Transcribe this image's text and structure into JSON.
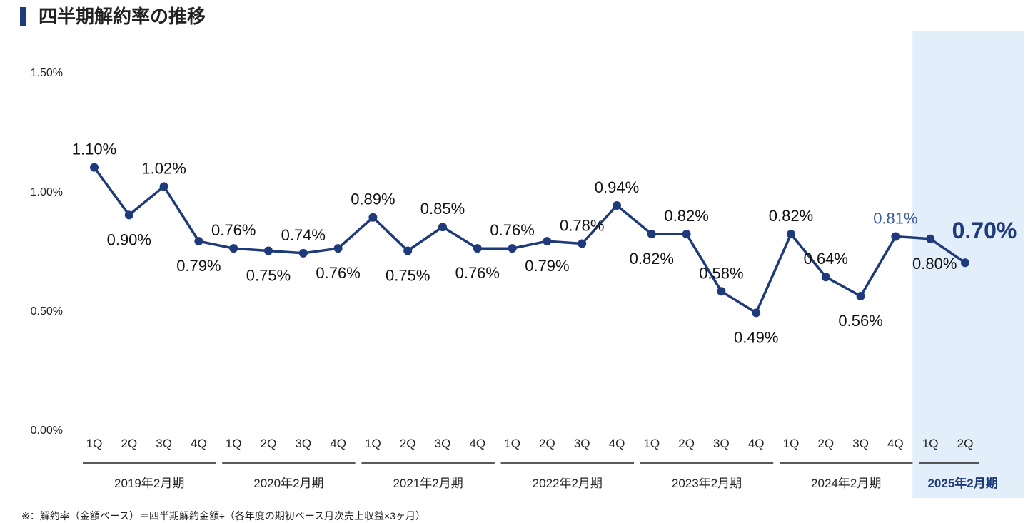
{
  "header": {
    "title": "四半期解約率の推移"
  },
  "footnote": "※：解約率（金額ベース）＝四半期解約金額÷（各年度の期初ベース月次売上収益×3ヶ月）",
  "colors": {
    "line": "#1f3a7a",
    "highlight_bg": "#e3eefb",
    "highlight_label": "#3b5aa0"
  },
  "chart_data": {
    "type": "line",
    "title": "四半期解約率の推移",
    "ylim": [
      0,
      1.5
    ],
    "y_ticks": [
      "0.00%",
      "0.50%",
      "1.00%",
      "1.50%"
    ],
    "y_tick_values": [
      0,
      0.5,
      1.0,
      1.5
    ],
    "grid": false,
    "categories": [
      "1Q",
      "2Q",
      "3Q",
      "4Q",
      "1Q",
      "2Q",
      "3Q",
      "4Q",
      "1Q",
      "2Q",
      "3Q",
      "4Q",
      "1Q",
      "2Q",
      "3Q",
      "4Q",
      "1Q",
      "2Q",
      "3Q",
      "4Q",
      "1Q",
      "2Q",
      "3Q",
      "4Q",
      "1Q",
      "2Q"
    ],
    "groups": [
      {
        "label": "2019年2月期",
        "count": 4
      },
      {
        "label": "2020年2月期",
        "count": 4
      },
      {
        "label": "2021年2月期",
        "count": 4
      },
      {
        "label": "2022年2月期",
        "count": 4
      },
      {
        "label": "2023年2月期",
        "count": 4
      },
      {
        "label": "2024年2月期",
        "count": 4
      },
      {
        "label": "2025年2月期",
        "count": 2,
        "highlight": true
      }
    ],
    "values": [
      1.1,
      0.9,
      1.02,
      0.79,
      0.76,
      0.75,
      0.74,
      0.76,
      0.89,
      0.75,
      0.85,
      0.76,
      0.76,
      0.79,
      0.78,
      0.94,
      0.82,
      0.82,
      0.58,
      0.49,
      0.82,
      0.64,
      0.56,
      0.81,
      0.8,
      0.7
    ],
    "labels": [
      "1.10%",
      "0.90%",
      "1.02%",
      "0.79%",
      "0.76%",
      "0.75%",
      "0.74%",
      "0.76%",
      "0.89%",
      "0.75%",
      "0.85%",
      "0.76%",
      "0.76%",
      "0.79%",
      "0.78%",
      "0.94%",
      "0.82%",
      "0.82%",
      "0.58%",
      "0.49%",
      "0.82%",
      "0.64%",
      "0.56%",
      "0.81%",
      "0.80%",
      "0.70%"
    ]
  }
}
